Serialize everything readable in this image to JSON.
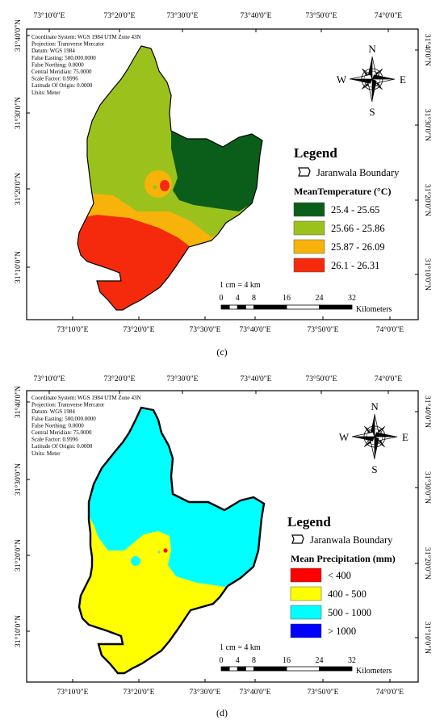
{
  "maps": [
    {
      "id": "c",
      "label": "(c)",
      "coordinate_info": [
        "Coordinate System: WGS 1984 UTM Zone 43N",
        "Projection: Transverse Mercator",
        "Datum: WGS 1984",
        "False Easting: 500,000.0000",
        "False Northing: 0.0000",
        "Central Meridian: 75.0000",
        "Scale Factor: 0.9996",
        "Latitude Of Origin: 0.0000",
        "Units: Meter"
      ],
      "legend": {
        "title": "Legend",
        "boundary_label": "Jaranwala Boundary",
        "subtitle": "MeanTemperature (°C)",
        "classes": [
          {
            "label": "25.4 - 25.65",
            "color": "#0b5e1a"
          },
          {
            "label": "25.66 - 25.86",
            "color": "#9bc21c"
          },
          {
            "label": "25.87 - 26.09",
            "color": "#f7b30a"
          },
          {
            "label": "26.1 - 26.31",
            "color": "#f52a0c"
          }
        ]
      }
    },
    {
      "id": "d",
      "label": "(d)",
      "coordinate_info": [
        "Coordinate System: WGS 1984 UTM Zone 43N",
        "Projection: Transverse Mercator",
        "Datum: WGS 1984",
        "False Easting: 500,000.0000",
        "False Northing: 0.0000",
        "Central Meridian: 75.0000",
        "Scale Factor: 0.9996",
        "Latitude Of Origin: 0.0000",
        "Units: Meter"
      ],
      "legend": {
        "title": "Legend",
        "boundary_label": "Jaranwala Boundary",
        "subtitle": "Mean Precipitation (mm)",
        "classes": [
          {
            "label": "< 400",
            "color": "#ff0000"
          },
          {
            "label": "400 - 500",
            "color": "#ffff00"
          },
          {
            "label": "500 - 1000",
            "color": "#00ffff"
          },
          {
            "label": "> 1000",
            "color": "#0000ff"
          }
        ]
      }
    }
  ],
  "x_ticks": [
    "73°10'0\"E",
    "73°20'0\"E",
    "73°30'0\"E",
    "73°40'0\"E",
    "73°50'0\"E",
    "74°0'0\"E"
  ],
  "y_ticks": [
    "31°40'0\"N",
    "31°30'0\"N",
    "31°20'0\"N",
    "31°10'0\"N"
  ],
  "compass": {
    "n": "N",
    "s": "S",
    "e": "E",
    "w": "W"
  },
  "scale_bar": {
    "ratio_text": "1 cm = 4 km",
    "ticks": [
      "0",
      "4",
      "8",
      "16",
      "24",
      "32"
    ],
    "unit": "Kilometers"
  }
}
